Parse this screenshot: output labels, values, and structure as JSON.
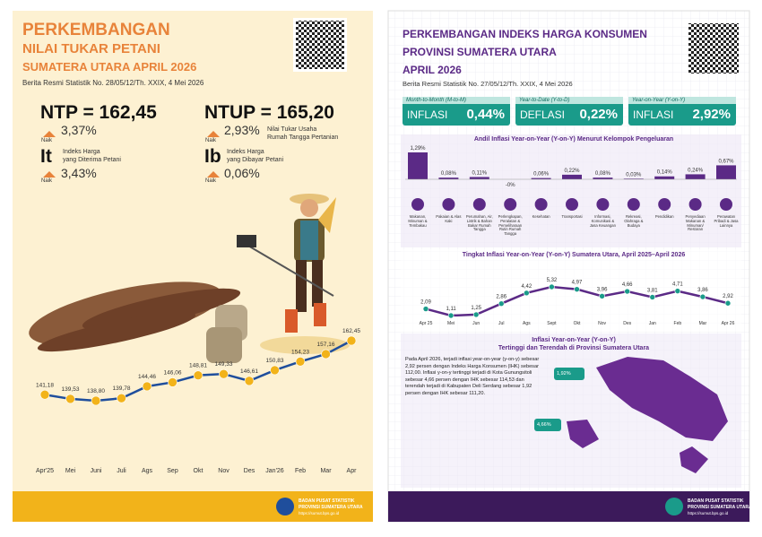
{
  "left": {
    "title": [
      "PERKEMBANGAN",
      "NILAI TUKAR PETANI",
      "SUMATERA UTARA APRIL 2026"
    ],
    "release": "Berita Resmi Statistik No. 28/05/12/Th. XXIX, 4 Mei 2026",
    "ntp": {
      "label": "NTP = 162,45",
      "direction": "Naik",
      "change": "3,37%"
    },
    "ntup": {
      "label": "NTUP = 165,20",
      "desc": [
        "Nilai Tukar Usaha",
        "Rumah Tangga Pertanian"
      ],
      "direction": "Naik",
      "change": "2,93%"
    },
    "it": {
      "label": "It",
      "desc": [
        "Indeks Harga",
        "yang Diterima Petani"
      ],
      "direction": "Naik",
      "change": "3,43%"
    },
    "ib": {
      "label": "Ib",
      "desc": [
        "Indeks Harga",
        "yang Dibayar Petani"
      ],
      "direction": "Naik",
      "change": "0,06%"
    },
    "chart_data": {
      "type": "line",
      "color": "#1f4e9c",
      "categories": [
        "Apr'25",
        "Mei",
        "Juni",
        "Juli",
        "Ags",
        "Sep",
        "Okt",
        "Nov",
        "Des",
        "Jan'26",
        "Feb",
        "Mar",
        "Apr"
      ],
      "values": [
        141.18,
        139.53,
        138.8,
        139.78,
        144.46,
        146.06,
        148.81,
        149.33,
        146.61,
        150.83,
        154.23,
        157.16,
        162.45
      ],
      "value_labels": [
        "141,18",
        "139,53",
        "138,80",
        "139,78",
        "144,46",
        "146,06",
        "148,81",
        "149,33",
        "146,61",
        "150,83",
        "154,23",
        "157,16",
        "162,45"
      ]
    },
    "footer": [
      "BADAN PUSAT STATISTIK",
      "PROVINSI SUMATERA UTARA",
      "https://sumut.bps.go.id"
    ]
  },
  "right": {
    "title": [
      "PERKEMBANGAN INDEKS HARGA KONSUMEN",
      "PROVINSI SUMATERA UTARA",
      "APRIL 2026"
    ],
    "release": "Berita Resmi Statistik No. 27/05/12/Th. XXIX, 4 Mei 2026",
    "boxes": [
      {
        "period": "Month-to-Month (M-to-M)",
        "kind": "INFLASI",
        "value": "0,44%"
      },
      {
        "period": "Year-to-Date (Y-to-D)",
        "kind": "DEFLASI",
        "value": "0,22%"
      },
      {
        "period": "Year-on-Year (Y-on-Y)",
        "kind": "INFLASI",
        "value": "2,92%"
      }
    ],
    "bar_chart": {
      "type": "bar",
      "color": "#5b2a86",
      "title": "Andil Inflasi Year-on-Year (Y-on-Y) Menurut Kelompok Pengeluaran",
      "categories": [
        "Makanan, Minuman & Tembakau",
        "Pakaian & Alas Kaki",
        "Perumahan, Air, Listrik & Bahan Bakar Rumah Tangga",
        "Perlengkapan, Peralatan & Pemeliharaan Rutin Rumah Tangga",
        "Kesehatan",
        "Transportasi",
        "Informasi, Komunikasi & Jasa Keuangan",
        "Rekreasi, Olahraga & Budaya",
        "Pendidikan",
        "Penyediaan Makanan & Minuman/ Restoran",
        "Perawatan Pribadi & Jasa Lainnya"
      ],
      "values": [
        1.29,
        0.08,
        0.11,
        0,
        0.06,
        0.22,
        0.08,
        0.03,
        0.14,
        0.24,
        0.67
      ],
      "value_labels": [
        "1,29%",
        "0,08%",
        "0,11%",
        "-0%",
        "0,06%",
        "0,22%",
        "0,08%",
        "0,03%",
        "0,14%",
        "0,24%",
        "0,67%"
      ]
    },
    "line_chart": {
      "type": "line",
      "color": "#5b2a86",
      "marker_color": "#1a9b8a",
      "title": "Tingkat Inflasi Year-on-Year (Y-on-Y) Sumatera Utara, April 2025–April 2026",
      "categories": [
        "Apr 25",
        "Mei",
        "Jun",
        "Jul",
        "Ags",
        "Sept",
        "Okt",
        "Nov",
        "Des",
        "Jan",
        "Feb",
        "Mar",
        "Apr 26"
      ],
      "values": [
        2.09,
        1.11,
        1.25,
        2.86,
        4.42,
        5.32,
        4.97,
        3.96,
        4.66,
        3.81,
        4.71,
        3.86,
        2.92
      ],
      "value_labels": [
        "2,09",
        "1,11",
        "1,25",
        "2,86",
        "4,42",
        "5,32",
        "4,97",
        "3,96",
        "4,66",
        "3,81",
        "4,71",
        "3,86",
        "2,92"
      ]
    },
    "map": {
      "title": [
        "Inflasi Year-on-Year (Y-on-Y)",
        "Tertinggi dan Terendah di Provinsi Sumatera Utara"
      ],
      "text": "Pada April 2026, terjadi inflasi year-on-year (y-on-y) sebesar 2,92 persen dengan Indeks Harga Konsumen (IHK) sebesar 112,00. Inflasi y-on-y tertinggi terjadi di Kota Gunungsitoli sebesar 4,66 persen dengan IHK sebesar 114,53 dan terendah terjadi di Kabupaten Deli Serdang sebesar 1,92 persen dengan IHK sebesar 111,20.",
      "lowest": "1,92%",
      "highest": "4,66%"
    },
    "footer": [
      "BADAN PUSAT STATISTIK",
      "PROVINSI SUMATERA UTARA",
      "https://sumut.bps.go.id"
    ]
  }
}
